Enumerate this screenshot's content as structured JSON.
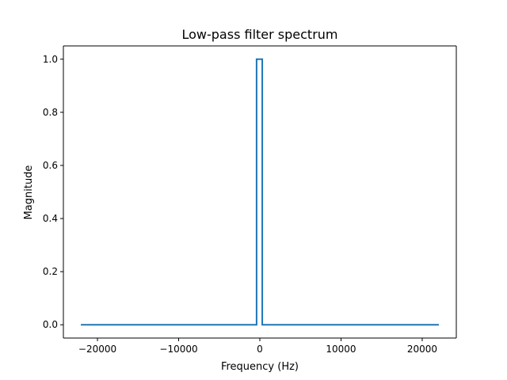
{
  "chart_data": {
    "type": "line",
    "title": "Low-pass filter spectrum",
    "xlabel": "Frequency (Hz)",
    "ylabel": "Magnitude",
    "xlim": [
      -24200,
      24200
    ],
    "ylim": [
      -0.05,
      1.05
    ],
    "xticks": [
      -20000,
      -10000,
      0,
      10000,
      20000
    ],
    "xtick_labels": [
      "−20000",
      "−10000",
      "0",
      "10000",
      "20000"
    ],
    "yticks": [
      0.0,
      0.2,
      0.4,
      0.6,
      0.8,
      1.0
    ],
    "ytick_labels": [
      "0.0",
      "0.2",
      "0.4",
      "0.6",
      "0.8",
      "1.0"
    ],
    "grid": false,
    "legend": "none",
    "series": [
      {
        "color": "#1f77b4",
        "x": [
          -22050,
          -400,
          -400,
          300,
          300,
          22050
        ],
        "y": [
          0,
          0,
          1,
          1,
          0,
          0
        ]
      }
    ]
  }
}
